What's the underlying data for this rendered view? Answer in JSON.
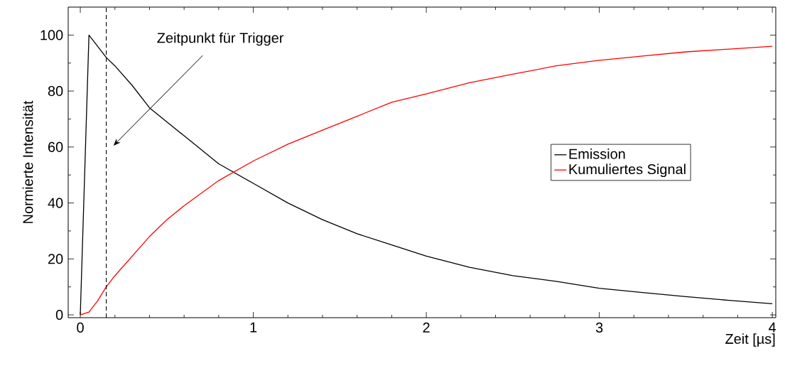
{
  "chart_data": {
    "type": "line",
    "xlabel": "Zeit [µs]",
    "ylabel": "Normierte Intensität",
    "x": [
      0,
      0.05,
      0.1,
      0.15,
      0.2,
      0.3,
      0.4,
      0.5,
      0.6,
      0.8,
      1,
      1.2,
      1.4,
      1.6,
      1.8,
      2,
      2.25,
      2.5,
      2.75,
      3,
      3.25,
      3.5,
      3.75,
      4
    ],
    "series": [
      {
        "name": "Emission",
        "color": "#000000",
        "values": [
          0,
          100,
          96,
          92,
          89,
          82,
          74,
          69,
          64,
          54,
          47,
          40,
          34,
          29,
          25,
          21,
          17,
          14,
          12,
          9.5,
          8,
          6.5,
          5.2,
          4
        ]
      },
      {
        "name": "Kumuliertes Signal",
        "color": "#ff0000",
        "values": [
          0,
          1,
          5,
          10,
          14,
          21,
          28,
          34,
          39,
          48,
          55,
          61,
          66,
          71,
          76,
          79,
          83,
          86,
          89,
          91,
          92.5,
          94,
          95,
          96
        ]
      }
    ],
    "xlim": [
      -0.07,
      4.02
    ],
    "ylim": [
      -1,
      110
    ],
    "xticks": [
      0,
      1,
      2,
      3,
      4
    ],
    "yticks": [
      0,
      20,
      40,
      60,
      80,
      100
    ],
    "ref_lines": [
      {
        "axis": "x",
        "value": 0.15,
        "color": "#000000",
        "line_style": "dashed"
      }
    ],
    "annotations": [
      "Zeitpunkt für Trigger"
    ],
    "legend": "right",
    "grid": false,
    "marker": "none",
    "line_style": "solid"
  }
}
